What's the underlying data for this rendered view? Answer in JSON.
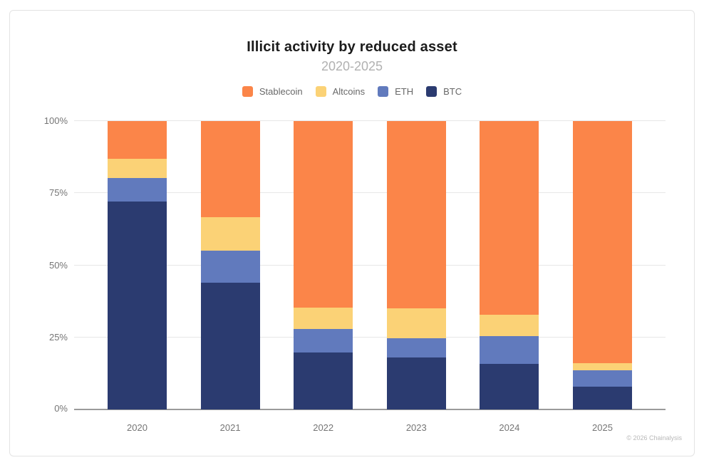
{
  "footer": {
    "copyright": "© 2026 Chainalysis"
  },
  "chart_data": {
    "type": "bar",
    "stacked": true,
    "title": "Illicit activity by reduced asset",
    "subtitle": "2020-2025",
    "categories": [
      "2020",
      "2021",
      "2022",
      "2023",
      "2024",
      "2025"
    ],
    "series": [
      {
        "name": "Stablecoin",
        "color": "#FB8549",
        "values": [
          13.0,
          33.4,
          64.7,
          65.0,
          67.1,
          84.0
        ]
      },
      {
        "name": "Altcoins",
        "color": "#FBD276",
        "values": [
          6.7,
          11.5,
          7.3,
          10.4,
          7.4,
          2.5
        ]
      },
      {
        "name": "ETH",
        "color": "#617ABD",
        "values": [
          8.3,
          11.1,
          8.3,
          6.5,
          9.7,
          5.6
        ]
      },
      {
        "name": "BTC",
        "color": "#2B3B70",
        "values": [
          72.0,
          44.0,
          19.7,
          18.1,
          15.8,
          7.9
        ]
      }
    ],
    "xlabel": "",
    "ylabel": "",
    "ylim": [
      0,
      100
    ],
    "yticks": [
      "0%",
      "25%",
      "50%",
      "75%",
      "100%"
    ],
    "grid": true,
    "legend_position": "top",
    "colors": {
      "grid": "#e7e7e7",
      "axis": "#9b9b9b",
      "tick_label": "#757575",
      "title": "#1b1b1b",
      "subtitle": "#b1b1b1"
    }
  }
}
